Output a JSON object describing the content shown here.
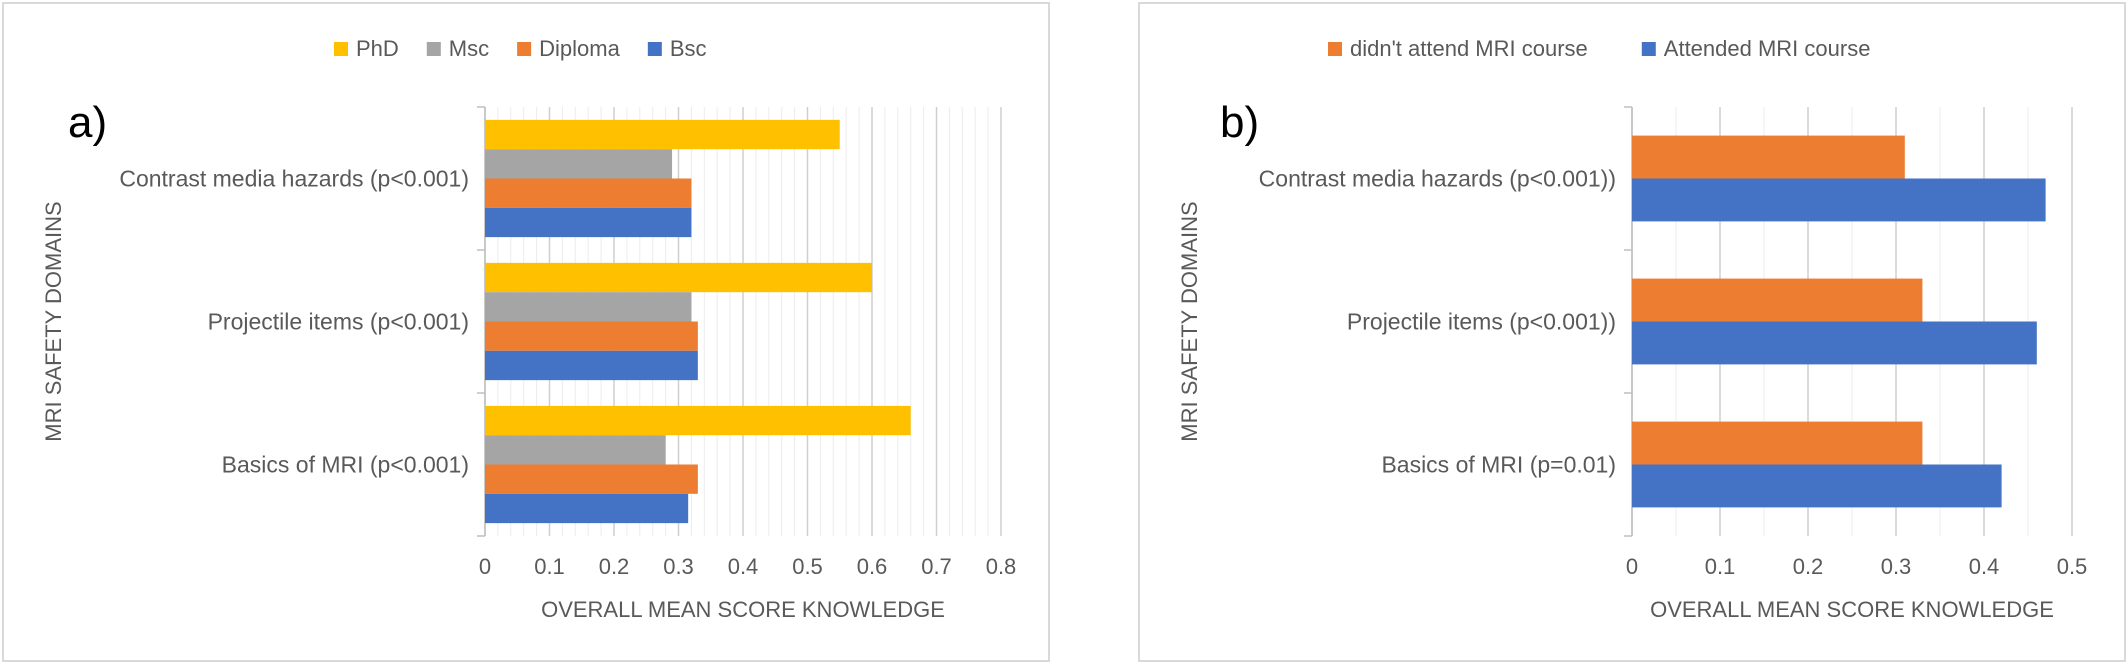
{
  "chart_data": [
    {
      "type": "bar",
      "orientation": "horizontal",
      "panel_label": "a)",
      "categories": [
        "Contrast media hazards (p<0.001)",
        "Projectile items (p<0.001)",
        "Basics of MRI (p<0.001)"
      ],
      "series": [
        {
          "name": "PhD",
          "color": "#FFC000",
          "values": [
            0.55,
            0.6,
            0.66
          ]
        },
        {
          "name": "Msc",
          "color": "#A5A5A5",
          "values": [
            0.29,
            0.32,
            0.28
          ]
        },
        {
          "name": "Diploma",
          "color": "#ED7D31",
          "values": [
            0.32,
            0.33,
            0.33
          ]
        },
        {
          "name": "Bsc",
          "color": "#4472C4",
          "values": [
            0.32,
            0.33,
            0.315
          ]
        }
      ],
      "legend_order": [
        "PhD",
        "Msc",
        "Diploma",
        "Bsc"
      ],
      "xlabel": "OVERALL MEAN SCORE KNOWLEDGE",
      "ylabel": "MRI SAFETY DOMAINS",
      "xlim": [
        0,
        0.8
      ],
      "xticks": [
        "0",
        "0.1",
        "0.2",
        "0.3",
        "0.4",
        "0.5",
        "0.6",
        "0.7",
        "0.8"
      ],
      "grid": true,
      "legend_position": "top"
    },
    {
      "type": "bar",
      "orientation": "horizontal",
      "panel_label": "b)",
      "categories": [
        "Contrast media hazards (p<0.001))",
        "Projectile items (p<0.001))",
        "Basics of MRI (p=0.01)"
      ],
      "series": [
        {
          "name": "didn't attend MRI course",
          "color": "#ED7D31",
          "values": [
            0.31,
            0.33,
            0.33
          ]
        },
        {
          "name": "Attended  MRI course",
          "color": "#4472C4",
          "values": [
            0.47,
            0.46,
            0.42
          ]
        }
      ],
      "legend_order": [
        "didn't attend MRI course",
        "Attended  MRI course"
      ],
      "xlabel": "OVERALL MEAN SCORE KNOWLEDGE",
      "ylabel": "MRI SAFETY DOMAINS",
      "xlim": [
        0,
        0.5
      ],
      "xticks": [
        "0",
        "0.1",
        "0.2",
        "0.3",
        "0.4",
        "0.5"
      ],
      "grid": true,
      "legend_position": "top"
    }
  ]
}
